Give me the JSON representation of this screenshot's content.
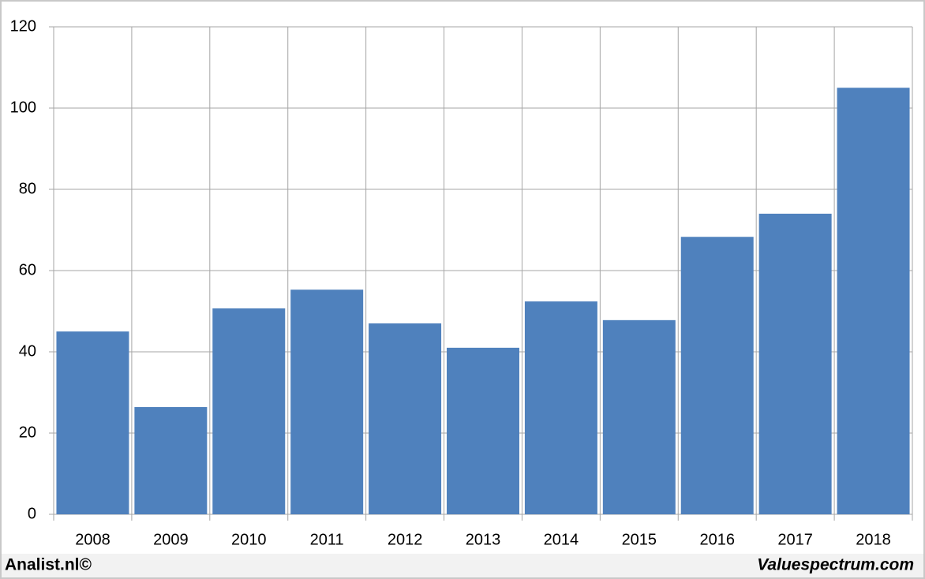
{
  "chart_data": {
    "type": "bar",
    "categories": [
      "2008",
      "2009",
      "2010",
      "2011",
      "2012",
      "2013",
      "2014",
      "2015",
      "2016",
      "2017",
      "2018"
    ],
    "values": [
      45,
      26.4,
      50.7,
      55.3,
      47,
      41,
      52.4,
      47.8,
      68.3,
      74,
      105
    ],
    "color": "#4f81bd",
    "ylim": [
      0,
      120
    ],
    "yticks": [
      0,
      20,
      40,
      60,
      80,
      100,
      120
    ],
    "grid": true,
    "footer_left": "Analist.nl©",
    "footer_right": "Valuespectrum.com"
  }
}
